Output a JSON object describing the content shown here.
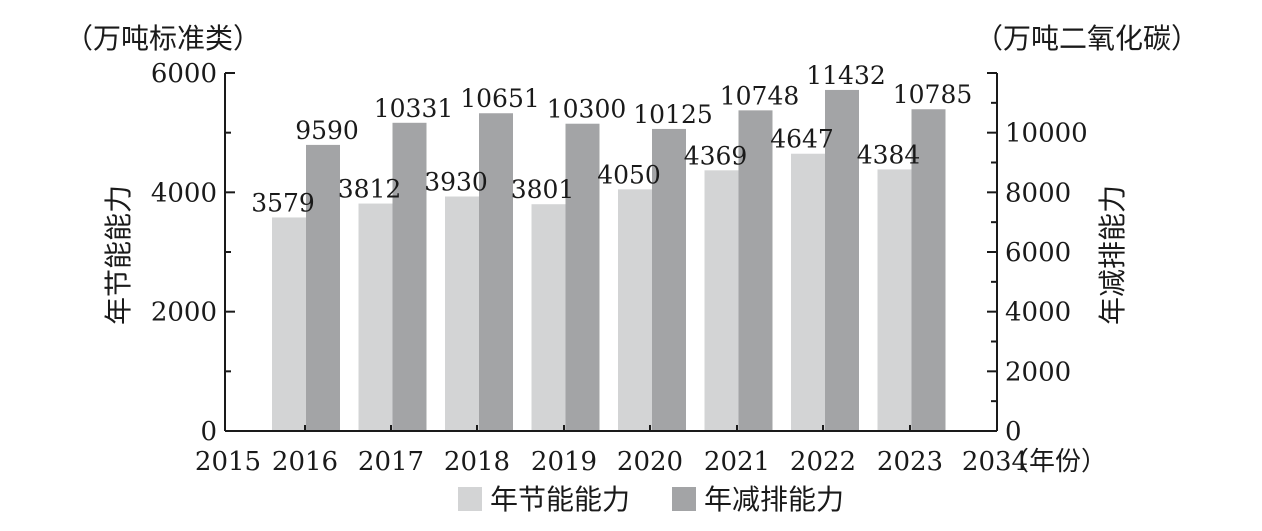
{
  "chart_data": {
    "type": "bar",
    "categories": [
      "2016",
      "2017",
      "2018",
      "2019",
      "2020",
      "2021",
      "2022",
      "2023"
    ],
    "x_tick_labels": [
      "2015",
      "2016",
      "2017",
      "2018",
      "2019",
      "2020",
      "2021",
      "2022",
      "2023",
      "2034"
    ],
    "x_unit": "（年份）",
    "series": [
      {
        "name": "年节能能力",
        "axis": "left",
        "color": "#d3d4d5",
        "values": [
          3579,
          3812,
          3930,
          3801,
          4050,
          4369,
          4647,
          4384
        ]
      },
      {
        "name": "年减排能力",
        "axis": "right",
        "color": "#a3a4a6",
        "values": [
          9590,
          10331,
          10651,
          10300,
          10125,
          10748,
          11432,
          10785
        ]
      }
    ],
    "y_left": {
      "label": "年节能能力",
      "unit": "（万吨标准类）",
      "ylim": [
        0,
        6000
      ],
      "ticks": [
        "0",
        "2000",
        "4000",
        "6000"
      ]
    },
    "y_right": {
      "label": "年减排能力",
      "unit": "（万吨二氧化碳）",
      "ylim": [
        0,
        12000
      ],
      "ticks": [
        "0",
        "2000",
        "4000",
        "6000",
        "8000",
        "10000"
      ]
    },
    "legend": {
      "position": "bottom"
    },
    "grid": false
  }
}
